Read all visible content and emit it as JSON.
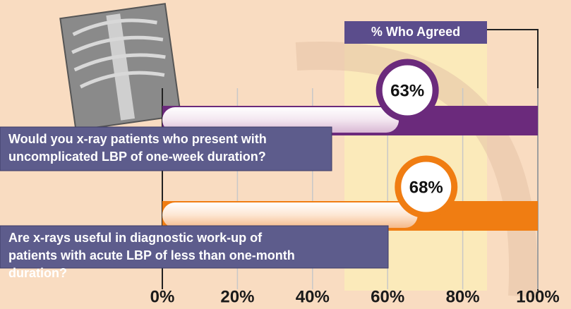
{
  "chart_data": {
    "type": "bar",
    "orientation": "horizontal",
    "categories": [
      "Would you x-ray patients who present with uncomplicated LBP of one-week duration?",
      "Are x-rays useful in diagnostic work-up of patients with acute LBP of less than one-month duration?"
    ],
    "series": [
      {
        "name": "% Who Agreed",
        "values": [
          63,
          68
        ],
        "value_labels": [
          "63%",
          "68%"
        ]
      }
    ],
    "colors": [
      "#6b2a7c",
      "#f07d12"
    ],
    "xlim": [
      0,
      100
    ],
    "xticks": [
      {
        "value": 0,
        "label": "0%"
      },
      {
        "value": 20,
        "label": "20%"
      },
      {
        "value": 40,
        "label": "40%"
      },
      {
        "value": 60,
        "label": "60%"
      },
      {
        "value": 80,
        "label": "80%"
      },
      {
        "value": 100,
        "label": "100%"
      }
    ],
    "grid": true
  }
}
